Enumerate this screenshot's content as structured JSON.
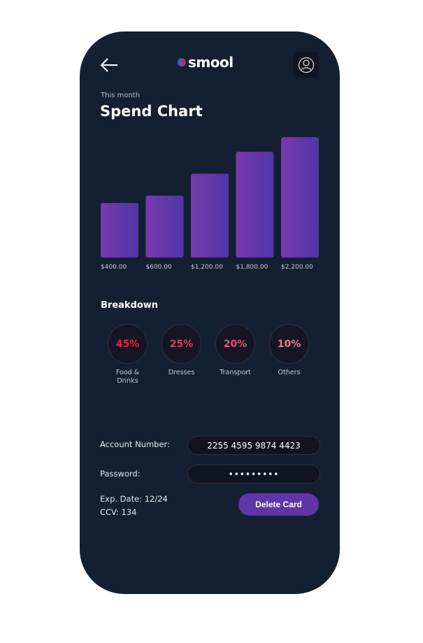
{
  "header": {
    "brand": "smool",
    "back_icon": "arrow-left-icon",
    "profile_icon": "user-circle-icon"
  },
  "page": {
    "subtitle": "This month",
    "title": "Spend Chart"
  },
  "chart_data": {
    "type": "bar",
    "categories": [
      "$400.00",
      "$600.00",
      "$1,200.00",
      "$1,800.00",
      "$2,200.00"
    ],
    "values": [
      400,
      600,
      1200,
      1800,
      2200
    ],
    "title": "",
    "xlabel": "",
    "ylabel": "",
    "grid": false,
    "colors": [
      "#7a3aae",
      "#4e35a8"
    ]
  },
  "breakdown": {
    "title": "Breakdown",
    "items": [
      {
        "percent": "45%",
        "label": "Food & Drinks",
        "color": "#ff1a3c"
      },
      {
        "percent": "25%",
        "label": "Dresses",
        "color": "#f0345a"
      },
      {
        "percent": "20%",
        "label": "Transport",
        "color": "#f0506a"
      },
      {
        "percent": "10%",
        "label": "Others",
        "color": "#f27590"
      }
    ]
  },
  "card": {
    "account_label": "Account Number:",
    "account_value": "2255 4595 9874 4423",
    "password_label": "Password:",
    "password_value": "•••••••••",
    "exp_date": "Exp. Date: 12/24",
    "ccv": "CCV: 134",
    "delete_label": "Delete Card"
  }
}
